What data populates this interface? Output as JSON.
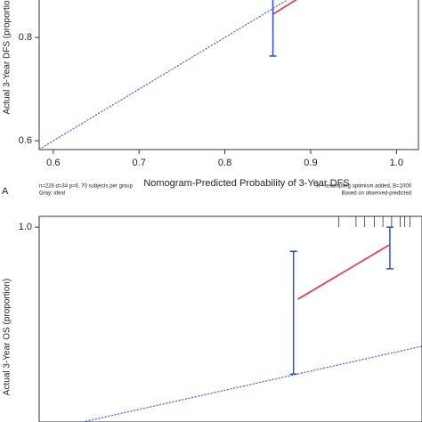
{
  "chart_data": [
    {
      "type": "calibration",
      "x_label": "Nomogram-Predicted Probability of 3-Year DFS",
      "y_label": "Actual 3-Year DFS (proportion)",
      "panel_label": "A",
      "note_left": [
        "n=228 d=34 p=6, 70 subjects per group",
        "Gray: ideal"
      ],
      "note_right": [
        "X - resampling optimism added, B=1000",
        "Based on observed-predicted"
      ],
      "xlim": [
        0.5836,
        1.0256
      ],
      "ylim": [
        0.583,
        0.907
      ],
      "xticks": [
        0.6,
        0.7,
        0.8,
        0.9,
        {
          "value": 1,
          "label": "1.0"
        }
      ],
      "yticks": [
        0.6,
        0.8
      ],
      "series": [
        {
          "color": "#5a6fd8",
          "dash": "dotted",
          "x": [
            0.5836,
            1.0256
          ],
          "values": [
            0.5836,
            1.0256
          ]
        },
        {
          "color": "#e0405a",
          "x": [
            0.856,
            0.885
          ],
          "values": [
            0.845,
            0.875
          ]
        }
      ],
      "error_bars": [
        {
          "color": "#2f4fd6",
          "x": 0.856,
          "value": 0.848,
          "low": 0.764,
          "high": 0.95
        }
      ]
    },
    {
      "type": "calibration",
      "y_label": "Actual 3-Year OS (proportion)",
      "xlim": [
        0.484,
        0.925
      ],
      "ylim": [
        0.532,
        1.026
      ],
      "yticks": [
        {
          "value": 1,
          "label": "1.0"
        }
      ],
      "series": [
        {
          "color": "#5a6fd8",
          "dash": "dotted",
          "x": [
            0.534,
            0.925
          ],
          "values": [
            0.532,
            0.714
          ]
        },
        {
          "color": "#e0405a",
          "x": [
            0.782,
            0.887
          ],
          "values": [
            0.827,
            0.957
          ]
        }
      ],
      "error_bars": [
        {
          "color": "#2f4fd6",
          "x": 0.777,
          "value": 0.838,
          "low": 0.647,
          "high": 0.942
        },
        {
          "color": "#2f4fd6",
          "x": 0.888,
          "value": 0.94,
          "low": 0.9,
          "high": 1.0
        }
      ],
      "rug": [
        0.829,
        0.849,
        0.859,
        0.87,
        0.88,
        0.89,
        0.9,
        0.905,
        0.911
      ]
    }
  ]
}
